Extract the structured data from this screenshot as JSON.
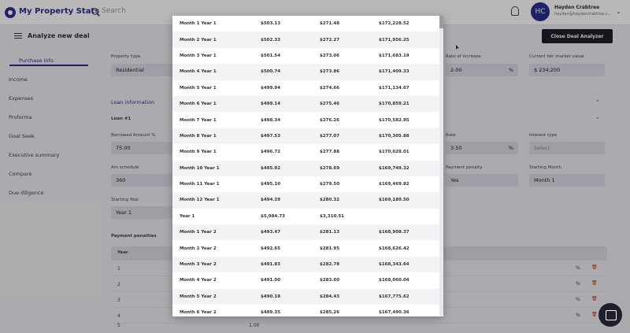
{
  "app": {
    "brand": "My Property Stats",
    "search_placeholder": "Search"
  },
  "user": {
    "initials": "HC",
    "name": "Hayden Crabtree",
    "email": "hayden@haydencrabtree.c..."
  },
  "header": {
    "title": "Analyze new deal",
    "close_button": "Close Deal Analyzer"
  },
  "sidebar": {
    "items": [
      "Purchase Info",
      "Income",
      "Expenses",
      "Proforma",
      "Goal Seek",
      "Executive summary",
      "Compare",
      "Due diligence"
    ]
  },
  "form": {
    "property_type_label": "Property type",
    "property_type": "Residential",
    "rate_increase_label": "Rate of increase",
    "rate_increase": "2.00",
    "pct": "%",
    "fair_value_label": "Current fair market value",
    "fair_value": "$ 234,200",
    "loan_section": "Loan information",
    "loan_num": "Loan #1",
    "borrowed_label": "Borrowed Amount %",
    "borrowed": "75.00",
    "rate_label": "Rate",
    "rate": "3.50",
    "interest_type_label": "Interest type",
    "interest_type": "Select",
    "am_label": "Am schedule",
    "am": "360",
    "penalty_label": "Payment penalty",
    "penalty": "Yes",
    "start_month_label": "Starting Month",
    "start_month": "Month 1",
    "start_year_label": "Starting Year",
    "start_year": "Year 1",
    "penalties_title": "Payment penalties",
    "year_col": "Year",
    "penalty_rows": [
      "1",
      "2",
      "3",
      "4",
      "5"
    ],
    "penalty_value_5": "1.00"
  },
  "schedule": [
    [
      "Month 1 Year 1",
      "$503.13",
      "$271.48",
      "$172,228.52"
    ],
    [
      "Month 2 Year 1",
      "$502.33",
      "$272.27",
      "$171,956.25"
    ],
    [
      "Month 3 Year 1",
      "$501.54",
      "$273.06",
      "$171,683.19"
    ],
    [
      "Month 4 Year 1",
      "$500.74",
      "$273.86",
      "$171,409.33"
    ],
    [
      "Month 5 Year 1",
      "$499.94",
      "$274.66",
      "$171,134.67"
    ],
    [
      "Month 6 Year 1",
      "$499.14",
      "$275.46",
      "$170,859.21"
    ],
    [
      "Month 7 Year 1",
      "$498.34",
      "$276.26",
      "$170,582.95"
    ],
    [
      "Month 8 Year 1",
      "$497.53",
      "$277.07",
      "$170,305.88"
    ],
    [
      "Month 9 Year 1",
      "$496.72",
      "$277.88",
      "$170,028.01"
    ],
    [
      "Month 10 Year 1",
      "$495.92",
      "$278.69",
      "$169,749.32"
    ],
    [
      "Month 11 Year 1",
      "$495.10",
      "$279.50",
      "$169,469.82"
    ],
    [
      "Month 12 Year 1",
      "$494.29",
      "$280.32",
      "$169,189.50"
    ],
    [
      "Year 1",
      "$5,984.73",
      "$3,310.51",
      ""
    ],
    [
      "Month 1 Year 2",
      "$493.47",
      "$281.13",
      "$168,908.37"
    ],
    [
      "Month 2 Year 2",
      "$492.65",
      "$281.95",
      "$168,626.42"
    ],
    [
      "Month 3 Year 2",
      "$491.83",
      "$282.78",
      "$168,343.64"
    ],
    [
      "Month 4 Year 2",
      "$491.00",
      "$283.60",
      "$168,060.04"
    ],
    [
      "Month 5 Year 2",
      "$490.18",
      "$284.43",
      "$167,775.62"
    ],
    [
      "Month 6 Year 2",
      "$489.35",
      "$285.26",
      "$167,490.36"
    ]
  ]
}
